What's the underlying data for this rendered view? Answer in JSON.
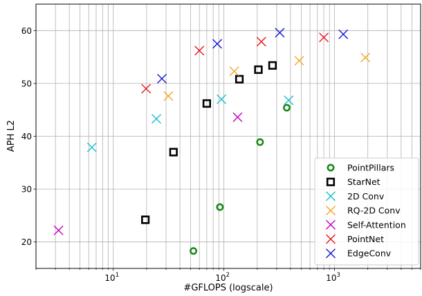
{
  "chart_data": {
    "type": "scatter",
    "xlabel": "#GFLOPS (logscale)",
    "ylabel": "APH L2",
    "xscale": "log",
    "xlim": [
      2,
      6000
    ],
    "ylim": [
      15,
      65
    ],
    "yticks": [
      20,
      30,
      40,
      50,
      60
    ],
    "xtick_labels": [
      {
        "value": 10,
        "base": "10",
        "exp": "1"
      },
      {
        "value": 100,
        "base": "10",
        "exp": "2"
      },
      {
        "value": 1000,
        "base": "10",
        "exp": "3"
      }
    ],
    "grid": true,
    "legend_position": "lower-right",
    "series": [
      {
        "name": "PointPillars",
        "marker": "circle",
        "color": "#1a8a1a",
        "points": [
          [
            53,
            18.3
          ],
          [
            92,
            26.6
          ],
          [
            212,
            38.9
          ],
          [
            370,
            45.4
          ]
        ]
      },
      {
        "name": "StarNet",
        "marker": "square",
        "color": "#000000",
        "points": [
          [
            19.5,
            24.2
          ],
          [
            35,
            37.0
          ],
          [
            70,
            46.2
          ],
          [
            138,
            50.8
          ],
          [
            205,
            52.6
          ],
          [
            275,
            53.4
          ]
        ]
      },
      {
        "name": "2D Conv",
        "marker": "x",
        "color": "#17becf",
        "points": [
          [
            6.4,
            37.9
          ],
          [
            24.5,
            43.3
          ],
          [
            95,
            47.0
          ],
          [
            385,
            46.8
          ]
        ]
      },
      {
        "name": "RQ-2D Conv",
        "marker": "x",
        "color": "#f5a623",
        "points": [
          [
            31.5,
            47.6
          ],
          [
            124,
            52.3
          ],
          [
            480,
            54.3
          ],
          [
            1900,
            54.9
          ]
        ]
      },
      {
        "name": "Self-Attention",
        "marker": "x",
        "color": "#c000c0",
        "points": [
          [
            3.2,
            22.2
          ],
          [
            133,
            43.6
          ]
        ]
      },
      {
        "name": "PointNet",
        "marker": "x",
        "color": "#e6141e",
        "points": [
          [
            19.8,
            49.0
          ],
          [
            60,
            56.2
          ],
          [
            218,
            57.9
          ],
          [
            800,
            58.7
          ]
        ]
      },
      {
        "name": "EdgeConv",
        "marker": "x",
        "color": "#1414d2",
        "points": [
          [
            27.5,
            50.9
          ],
          [
            87,
            57.5
          ],
          [
            320,
            59.6
          ],
          [
            1200,
            59.3
          ]
        ]
      }
    ]
  }
}
